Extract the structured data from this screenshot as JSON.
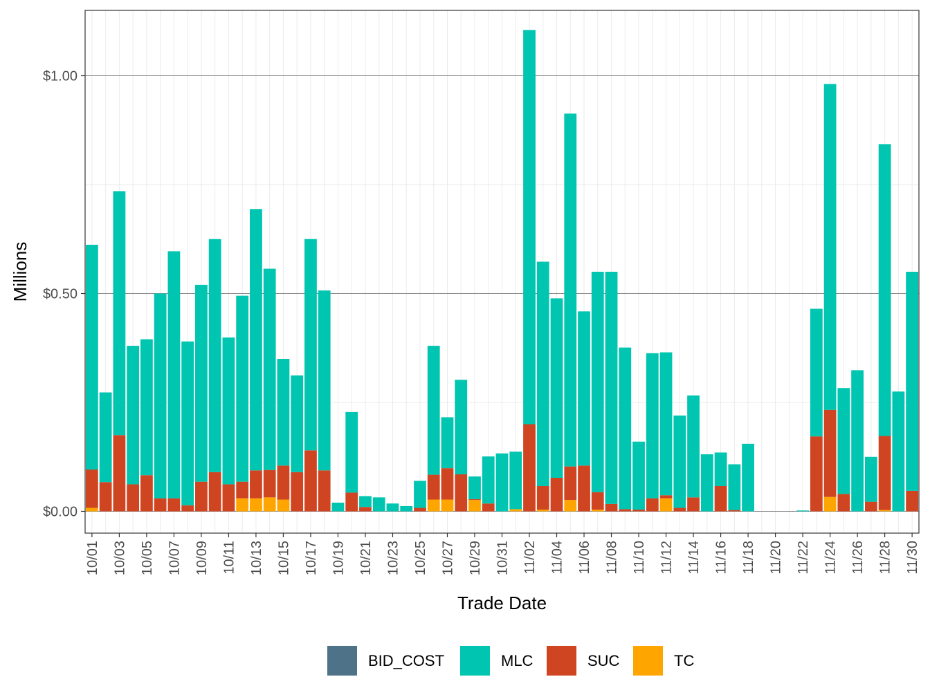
{
  "chart_data": {
    "type": "bar",
    "stacked": true,
    "xlabel": "Trade Date",
    "ylabel": "Millions",
    "ylim": [
      -0.05,
      1.15
    ],
    "yticks": [
      0.0,
      0.5,
      1.0
    ],
    "ytick_labels": [
      "$0.00",
      "$0.50",
      "$1.00"
    ],
    "grid": true,
    "legend_position": "bottom",
    "x_tick_labels": [
      "10/01",
      "10/03",
      "10/05",
      "10/07",
      "10/09",
      "10/11",
      "10/13",
      "10/15",
      "10/17",
      "10/19",
      "10/21",
      "10/23",
      "10/25",
      "10/27",
      "10/29",
      "10/31",
      "11/02",
      "11/04",
      "11/06",
      "11/08",
      "11/10",
      "11/12",
      "11/14",
      "11/16",
      "11/18",
      "11/20",
      "11/22",
      "11/24",
      "11/26",
      "11/28",
      "11/30"
    ],
    "categories": [
      "10/01",
      "10/02",
      "10/03",
      "10/04",
      "10/05",
      "10/06",
      "10/07",
      "10/08",
      "10/09",
      "10/10",
      "10/11",
      "10/12",
      "10/13",
      "10/14",
      "10/15",
      "10/16",
      "10/17",
      "10/18",
      "10/19",
      "10/20",
      "10/21",
      "10/22",
      "10/23",
      "10/24",
      "10/25",
      "10/26",
      "10/27",
      "10/28",
      "10/29",
      "10/30",
      "10/31",
      "11/01",
      "11/02",
      "11/03",
      "11/04",
      "11/05",
      "11/06",
      "11/07",
      "11/08",
      "11/09",
      "11/10",
      "11/11",
      "11/12",
      "11/13",
      "11/14",
      "11/15",
      "11/16",
      "11/17",
      "11/18",
      "11/19",
      "11/20",
      "11/21",
      "11/22",
      "11/23",
      "11/24",
      "11/25",
      "11/26",
      "11/27",
      "11/28",
      "11/29",
      "11/30"
    ],
    "series": [
      {
        "name": "BID_COST",
        "color": "#4e7389",
        "values": [
          0,
          0,
          0,
          0,
          0,
          0,
          0,
          0,
          0,
          0,
          0,
          0,
          0,
          0,
          0,
          0,
          0,
          0,
          0,
          0,
          0,
          0,
          0,
          0,
          0,
          0,
          0,
          0,
          0,
          0,
          0,
          0,
          0,
          0,
          0,
          0,
          0,
          0,
          0,
          0,
          0,
          0,
          0,
          0,
          0,
          0,
          0,
          0,
          0,
          0,
          0,
          0,
          0,
          0,
          0,
          0,
          0,
          0,
          0,
          0,
          0
        ]
      },
      {
        "name": "TC",
        "color": "#ffa500",
        "values": [
          0.008,
          0,
          0,
          0,
          0,
          0,
          0,
          0,
          0,
          0,
          0,
          0.03,
          0.03,
          0.032,
          0.027,
          0,
          0,
          0,
          0,
          0,
          0,
          0,
          0,
          0,
          0,
          0.027,
          0.027,
          0,
          0.026,
          0,
          0,
          0.005,
          0,
          0.004,
          0,
          0.026,
          0,
          0.004,
          0,
          0,
          0,
          0,
          0.03,
          0,
          0,
          0,
          0,
          0,
          0,
          0,
          0,
          0,
          0,
          0,
          0.033,
          0,
          0,
          0,
          0.003,
          0,
          0
        ]
      },
      {
        "name": "SUC",
        "color": "#d04521",
        "values": [
          0.088,
          0.067,
          0.175,
          0.062,
          0.083,
          0.03,
          0.03,
          0.014,
          0.068,
          0.09,
          0.062,
          0.038,
          0.064,
          0.063,
          0.078,
          0.09,
          0.14,
          0.094,
          0,
          0.043,
          0.01,
          0,
          0,
          0,
          0.008,
          0.057,
          0.072,
          0.085,
          0.002,
          0.018,
          0,
          0,
          0.2,
          0.054,
          0.077,
          0.077,
          0.105,
          0.04,
          0.017,
          0.005,
          0.004,
          0.03,
          0.007,
          0.008,
          0.032,
          0,
          0.058,
          0.003,
          0,
          0,
          0,
          0,
          0,
          0.172,
          0.2,
          0.04,
          0,
          0.022,
          0.17,
          0,
          0.047
        ]
      },
      {
        "name": "MLC",
        "color": "#00c5b0",
        "values": [
          0.516,
          0.206,
          0.56,
          0.318,
          0.312,
          0.47,
          0.567,
          0.376,
          0.452,
          0.535,
          0.337,
          0.427,
          0.6,
          0.462,
          0.245,
          0.222,
          0.485,
          0.413,
          0.02,
          0.185,
          0.025,
          0.032,
          0.018,
          0.012,
          0.062,
          0.296,
          0.117,
          0.217,
          0.052,
          0.108,
          0.133,
          0.132,
          0.905,
          0.515,
          0.412,
          0.81,
          0.354,
          0.506,
          0.533,
          0.371,
          0.156,
          0.333,
          0.328,
          0.212,
          0.234,
          0.131,
          0.077,
          0.105,
          0.155,
          0,
          0,
          0,
          0.002,
          0.293,
          0.748,
          0.243,
          0.324,
          0.103,
          0.67,
          0.275,
          0.503
        ]
      }
    ]
  }
}
